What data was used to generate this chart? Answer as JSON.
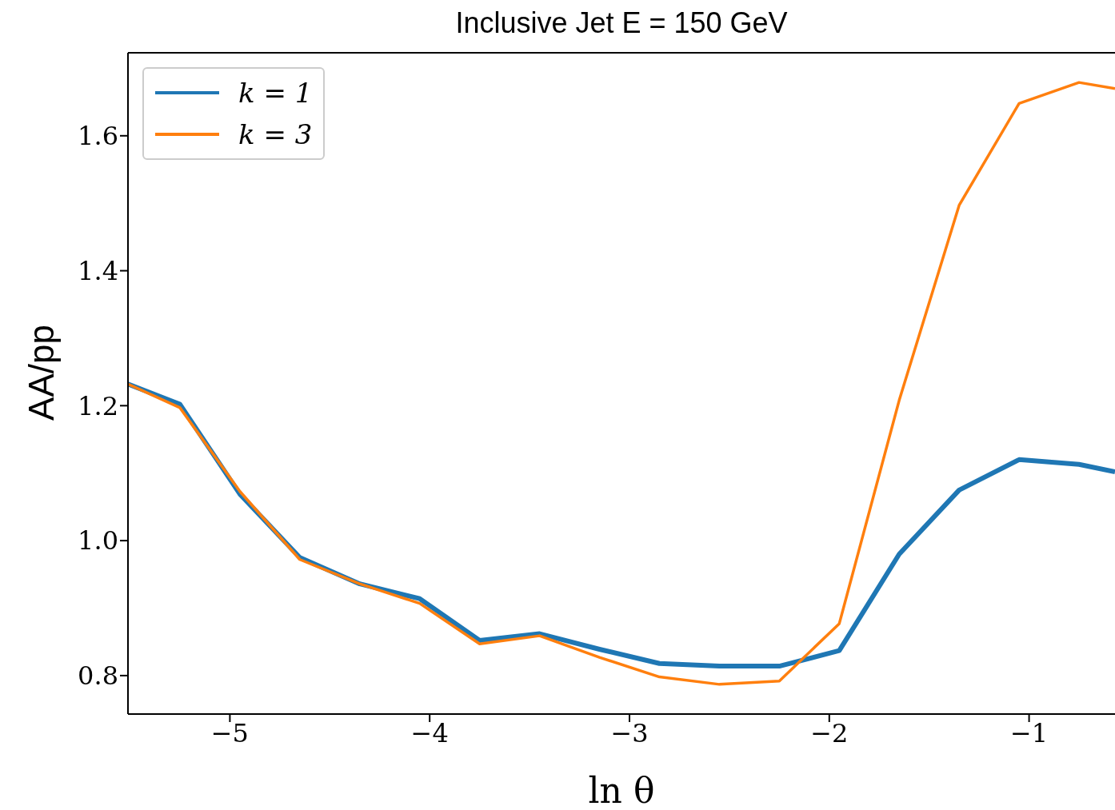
{
  "chart_data": {
    "type": "line",
    "title": "Inclusive Jet E = 150 GeV",
    "xlabel": "ln θ",
    "ylabel": "AA/pp",
    "x": [
      -5.51,
      -5.25,
      -4.95,
      -4.65,
      -4.35,
      -4.05,
      -3.75,
      -3.45,
      -3.15,
      -2.85,
      -2.55,
      -2.25,
      -1.95,
      -1.65,
      -1.35,
      -1.05,
      -0.75,
      -0.57
    ],
    "series": [
      {
        "name": "k = 1",
        "color": "#1f77b4",
        "values": [
          1.232,
          1.202,
          1.069,
          0.975,
          0.936,
          0.914,
          0.852,
          0.862,
          0.839,
          0.818,
          0.814,
          0.814,
          0.837,
          0.98,
          1.075,
          1.12,
          1.113,
          1.102
        ]
      },
      {
        "name": "k = 3",
        "color": "#ff7f0e",
        "values": [
          1.232,
          1.197,
          1.073,
          0.972,
          0.936,
          0.907,
          0.847,
          0.859,
          0.827,
          0.798,
          0.787,
          0.792,
          0.877,
          1.208,
          1.497,
          1.648,
          1.679,
          1.67
        ]
      }
    ],
    "xlim": [
      -5.51,
      -0.57
    ],
    "xticks": [
      {
        "value": -5,
        "label": "−5"
      },
      {
        "value": -4,
        "label": "−4"
      },
      {
        "value": -3,
        "label": "−3"
      },
      {
        "value": -2,
        "label": "−2"
      },
      {
        "value": -1,
        "label": "−1"
      }
    ],
    "ylim": [
      0.743,
      1.723
    ],
    "yticks": [
      {
        "value": 0.8,
        "label": "0.8"
      },
      {
        "value": 1.0,
        "label": "1.0"
      },
      {
        "value": 1.2,
        "label": "1.2"
      },
      {
        "value": 1.4,
        "label": "1.4"
      },
      {
        "value": 1.6,
        "label": "1.6"
      }
    ],
    "grid": false,
    "legend": "top left",
    "marker": "none",
    "line_style": "solid"
  }
}
